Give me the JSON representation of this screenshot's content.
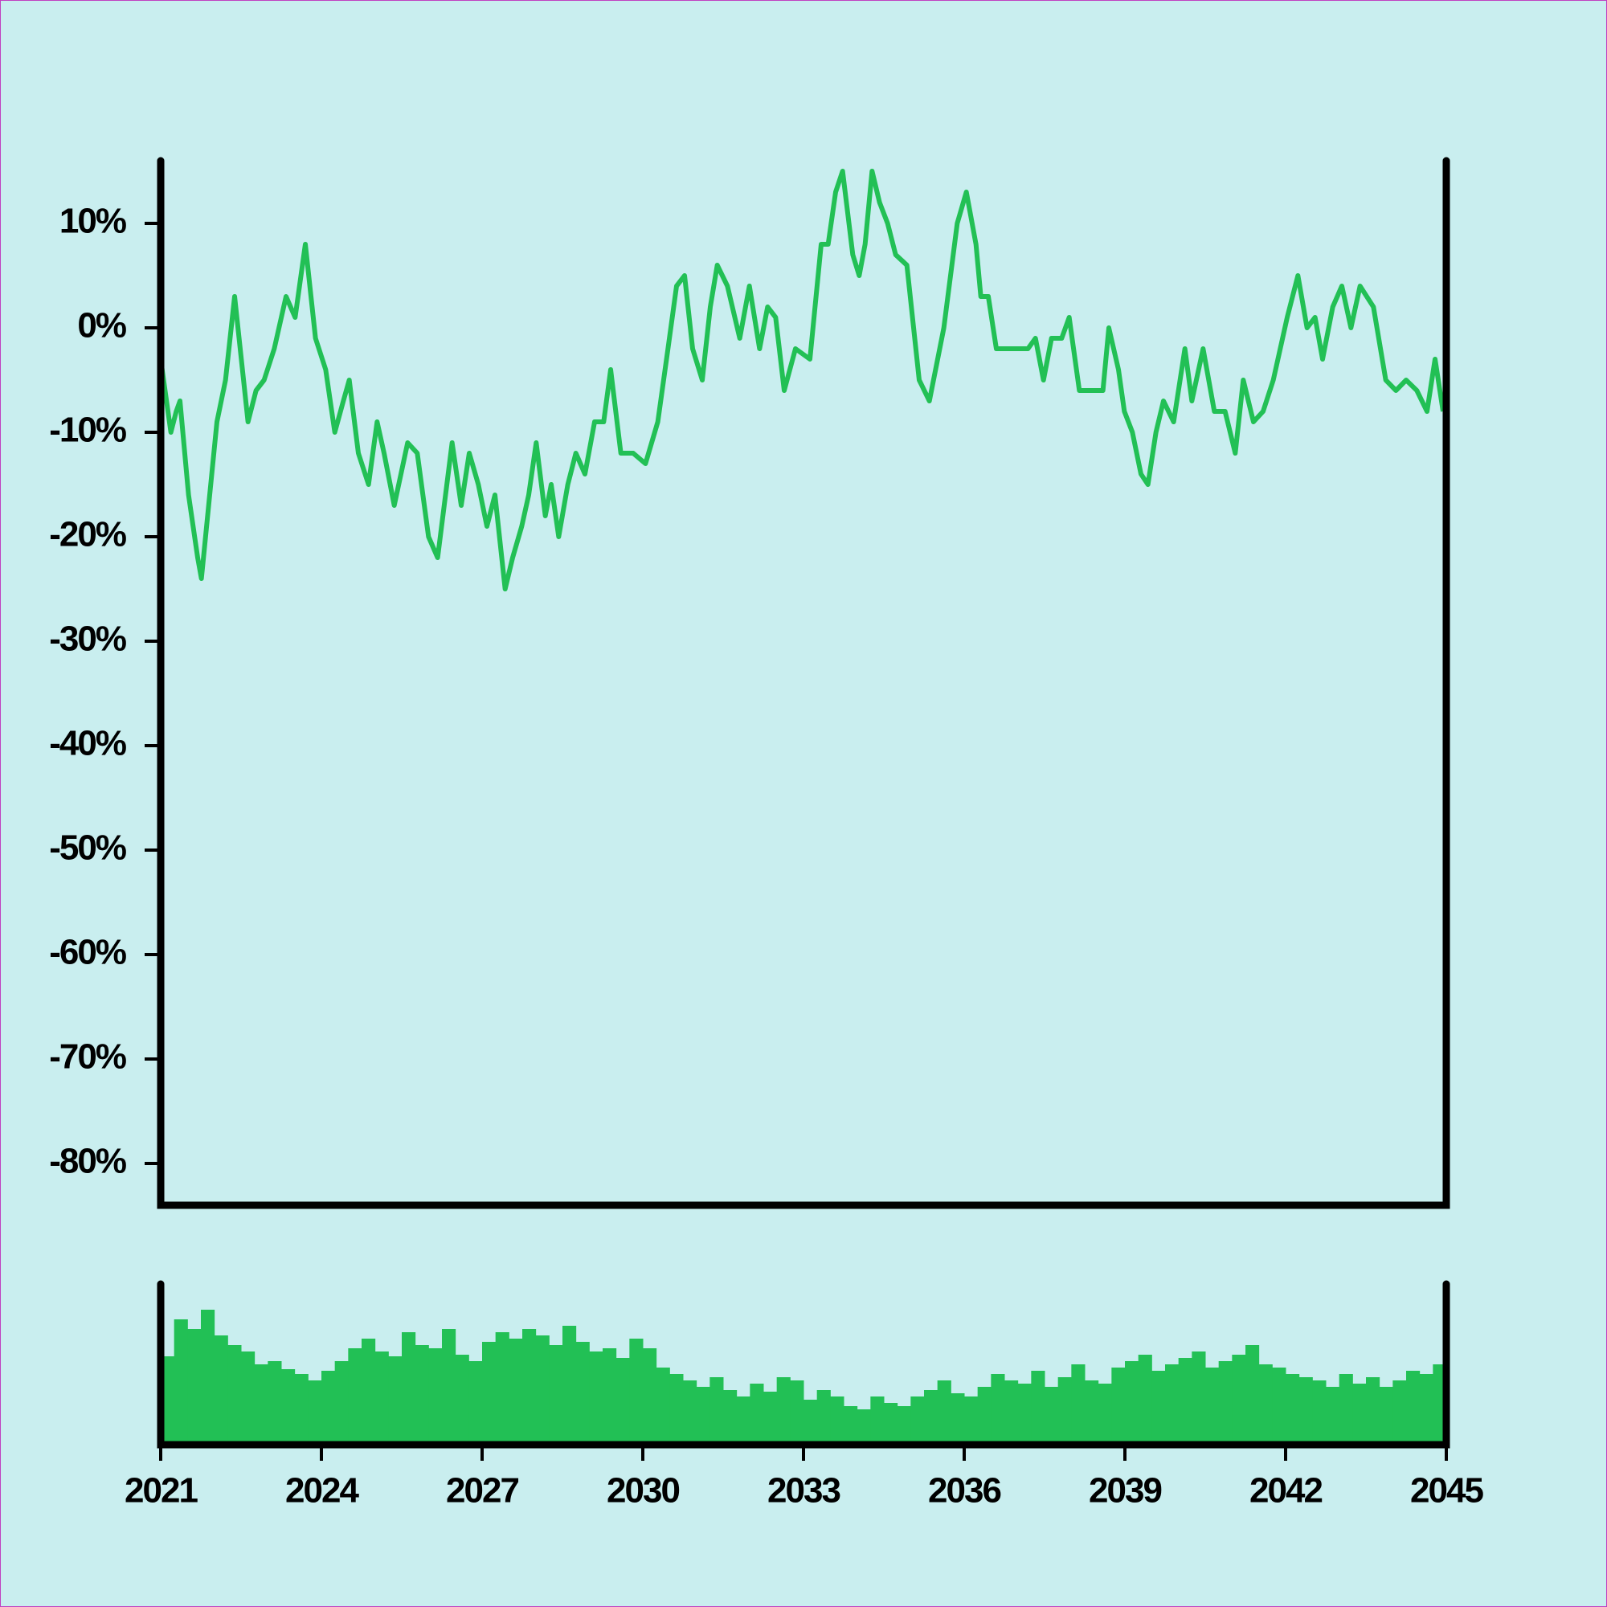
{
  "chart_data": [
    {
      "type": "line",
      "x": [
        2021.0,
        2021.19,
        2021.29,
        2021.36,
        2021.52,
        2021.69,
        2021.76,
        2022.05,
        2022.21,
        2022.38,
        2022.63,
        2022.78,
        2022.93,
        2023.12,
        2023.34,
        2023.51,
        2023.7,
        2023.89,
        2024.08,
        2024.25,
        2024.41,
        2024.52,
        2024.69,
        2024.88,
        2025.04,
        2025.17,
        2025.36,
        2025.61,
        2025.79,
        2026.0,
        2026.17,
        2026.44,
        2026.61,
        2026.76,
        2026.93,
        2027.09,
        2027.24,
        2027.43,
        2027.57,
        2027.74,
        2027.87,
        2028.01,
        2028.18,
        2028.29,
        2028.43,
        2028.6,
        2028.75,
        2028.92,
        2029.1,
        2029.27,
        2029.4,
        2029.59,
        2029.82,
        2030.05,
        2030.28,
        2030.47,
        2030.63,
        2030.78,
        2030.93,
        2031.11,
        2031.26,
        2031.39,
        2031.58,
        2031.81,
        2031.99,
        2032.18,
        2032.33,
        2032.48,
        2032.64,
        2032.85,
        2033.12,
        2033.33,
        2033.46,
        2033.6,
        2033.73,
        2033.92,
        2034.04,
        2034.15,
        2034.28,
        2034.42,
        2034.57,
        2034.72,
        2034.93,
        2035.16,
        2035.35,
        2035.62,
        2035.87,
        2036.04,
        2036.22,
        2036.31,
        2036.45,
        2036.6,
        2036.75,
        2036.96,
        2037.19,
        2037.33,
        2037.48,
        2037.63,
        2037.82,
        2037.96,
        2038.15,
        2038.36,
        2038.59,
        2038.7,
        2038.88,
        2038.99,
        2039.14,
        2039.3,
        2039.43,
        2039.58,
        2039.72,
        2039.91,
        2040.12,
        2040.25,
        2040.46,
        2040.67,
        2040.87,
        2041.06,
        2041.21,
        2041.4,
        2041.58,
        2041.77,
        2042.03,
        2042.23,
        2042.4,
        2042.55,
        2042.69,
        2042.88,
        2043.05,
        2043.22,
        2043.39,
        2043.64,
        2043.87,
        2044.06,
        2044.25,
        2044.45,
        2044.64,
        2044.79,
        2044.94
      ],
      "series": [
        {
          "color": "#22c055",
          "values": [
            -3,
            -10,
            -8,
            -7,
            -16,
            -22,
            -24,
            -9,
            -5,
            3,
            -9,
            -6,
            -5,
            -2,
            3,
            1,
            8,
            -1,
            -4,
            -10,
            -7,
            -5,
            -12,
            -15,
            -9,
            -12,
            -17,
            -11,
            -12,
            -20,
            -22,
            -11,
            -17,
            -12,
            -15,
            -19,
            -16,
            -25,
            -22,
            -19,
            -16,
            -11,
            -18,
            -15,
            -20,
            -15,
            -12,
            -14,
            -9,
            -9,
            -4,
            -12,
            -12,
            -13,
            -9,
            -2,
            4,
            5,
            -2,
            -5,
            2,
            6,
            4,
            -1,
            4,
            -2,
            2,
            1,
            -6,
            -2,
            -3,
            8,
            8,
            13,
            15,
            7,
            5,
            8,
            15,
            12,
            10,
            7,
            6,
            -5,
            -7,
            0,
            10,
            13,
            8,
            3,
            3,
            -2,
            -2,
            -2,
            -2,
            -1,
            -5,
            -1,
            -1,
            1,
            -6,
            -6,
            -6,
            0,
            -4,
            -8,
            -10,
            -14,
            -15,
            -10,
            -7,
            -9,
            -2,
            -7,
            -2,
            -8,
            -8,
            -12,
            -5,
            -9,
            -8,
            -5,
            1,
            5,
            0,
            1,
            -3,
            2,
            4,
            0,
            4,
            2,
            -5,
            -6,
            -5,
            -6,
            -8,
            -3,
            -8
          ]
        }
      ],
      "xlim": [
        2021,
        2045
      ],
      "ylim": [
        -84,
        16
      ],
      "yticks": [
        {
          "value": 10,
          "label": "10%"
        },
        {
          "value": 0,
          "label": "0%"
        },
        {
          "value": -10,
          "label": "-10%"
        },
        {
          "value": -20,
          "label": "-20%"
        },
        {
          "value": -30,
          "label": "-30%"
        },
        {
          "value": -40,
          "label": "-40%"
        },
        {
          "value": -50,
          "label": "-50%"
        },
        {
          "value": -60,
          "label": "-60%"
        },
        {
          "value": -70,
          "label": "-70%"
        },
        {
          "value": -80,
          "label": "-80%"
        }
      ]
    },
    {
      "type": "bar",
      "x": [
        2021.0,
        2021.25,
        2021.5,
        2021.75,
        2022.0,
        2022.25,
        2022.5,
        2022.75,
        2023.0,
        2023.25,
        2023.5,
        2023.75,
        2024.0,
        2024.25,
        2024.5,
        2024.75,
        2025.0,
        2025.25,
        2025.5,
        2025.75,
        2026.0,
        2026.25,
        2026.5,
        2026.75,
        2027.0,
        2027.25,
        2027.5,
        2027.75,
        2028.0,
        2028.25,
        2028.5,
        2028.75,
        2029.0,
        2029.25,
        2029.5,
        2029.75,
        2030.0,
        2030.25,
        2030.5,
        2030.75,
        2031.0,
        2031.25,
        2031.5,
        2031.75,
        2032.0,
        2032.25,
        2032.5,
        2032.75,
        2033.0,
        2033.25,
        2033.5,
        2033.75,
        2034.0,
        2034.25,
        2034.5,
        2034.75,
        2035.0,
        2035.25,
        2035.5,
        2035.75,
        2036.0,
        2036.25,
        2036.5,
        2036.75,
        2037.0,
        2037.25,
        2037.5,
        2037.75,
        2038.0,
        2038.25,
        2038.5,
        2038.75,
        2039.0,
        2039.25,
        2039.5,
        2039.75,
        2040.0,
        2040.25,
        2040.5,
        2040.75,
        2041.0,
        2041.25,
        2041.5,
        2041.75,
        2042.0,
        2042.25,
        2042.5,
        2042.75,
        2043.0,
        2043.25,
        2043.5,
        2043.75,
        2044.0,
        2044.25,
        2044.5,
        2044.75
      ],
      "values": [
        55,
        78,
        72,
        84,
        68,
        62,
        58,
        50,
        52,
        47,
        44,
        40,
        46,
        52,
        60,
        66,
        58,
        55,
        70,
        62,
        60,
        72,
        56,
        52,
        64,
        70,
        66,
        72,
        68,
        62,
        74,
        64,
        58,
        60,
        54,
        66,
        60,
        48,
        44,
        40,
        36,
        42,
        34,
        30,
        38,
        33,
        42,
        40,
        28,
        34,
        30,
        24,
        22,
        30,
        26,
        24,
        30,
        34,
        40,
        32,
        30,
        36,
        44,
        40,
        38,
        46,
        36,
        42,
        50,
        40,
        38,
        48,
        52,
        56,
        46,
        50,
        54,
        58,
        48,
        52,
        56,
        62,
        50,
        48,
        44,
        42,
        40,
        36,
        44,
        38,
        42,
        36,
        40,
        46,
        44,
        50
      ],
      "color": "#22c055",
      "xlim": [
        2021,
        2045
      ],
      "ylim": [
        0,
        100
      ],
      "xticks": [
        2021,
        2024,
        2027,
        2030,
        2033,
        2036,
        2039,
        2042,
        2045
      ]
    }
  ]
}
